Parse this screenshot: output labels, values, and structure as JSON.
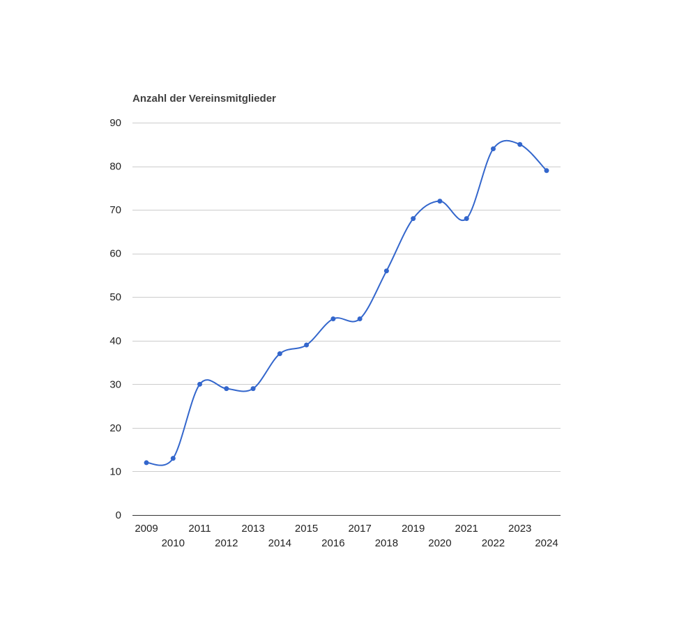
{
  "chart_data": {
    "type": "line",
    "title": "Anzahl der Vereinsmitglieder",
    "xlabel": "",
    "ylabel": "",
    "x": [
      "2009",
      "2010",
      "2011",
      "2012",
      "2013",
      "2014",
      "2015",
      "2016",
      "2017",
      "2018",
      "2019",
      "2020",
      "2021",
      "2022",
      "2023",
      "2024"
    ],
    "series": [
      {
        "values": [
          12,
          13,
          30,
          29,
          29,
          37,
          39,
          45,
          45,
          56,
          68,
          72,
          68,
          84,
          85,
          79
        ],
        "color": "#3366cc",
        "smooth": true,
        "markers": true
      }
    ],
    "ylim": [
      0,
      90
    ],
    "yticks": [
      "0",
      "10",
      "20",
      "30",
      "40",
      "50",
      "60",
      "70",
      "80",
      "90"
    ],
    "grid": true,
    "legend": "none"
  }
}
